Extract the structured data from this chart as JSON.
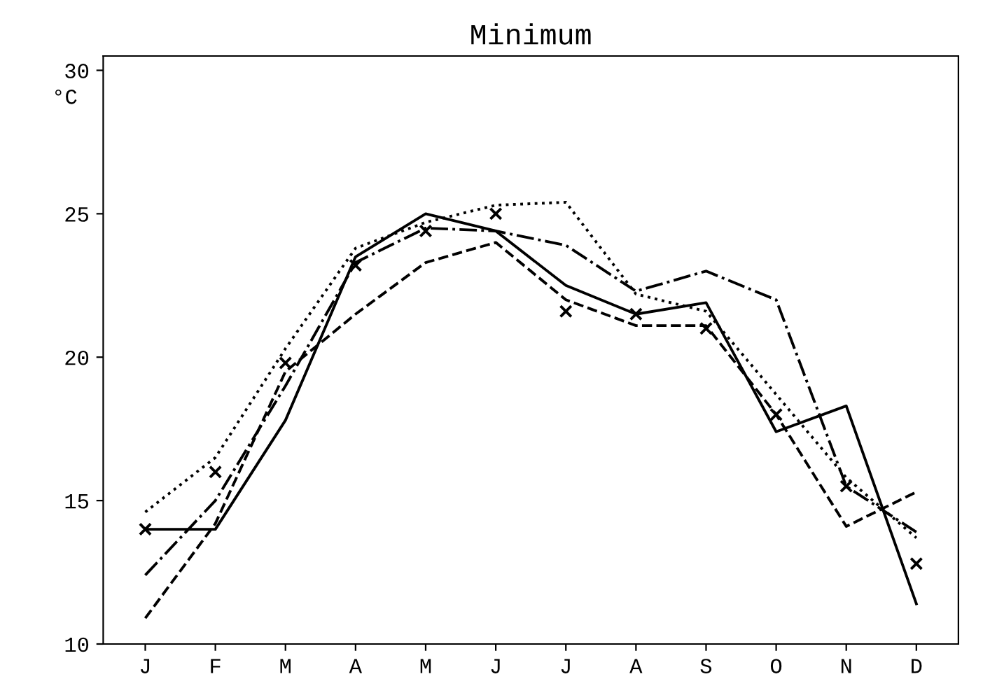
{
  "chart_data": {
    "type": "line",
    "title": "Minimum",
    "ylabel": "°C",
    "categories": [
      "J",
      "F",
      "M",
      "A",
      "M",
      "J",
      "J",
      "A",
      "S",
      "O",
      "N",
      "D"
    ],
    "ylim": [
      10,
      30.5
    ],
    "yticks": [
      10,
      15,
      20,
      25,
      30
    ],
    "grid": false,
    "legend": false,
    "series": [
      {
        "color": "#000000",
        "line_style": "solid",
        "marker": "none",
        "values": [
          14.0,
          14.0,
          17.8,
          23.5,
          25.0,
          24.4,
          22.5,
          21.5,
          21.9,
          17.4,
          18.3,
          11.4
        ]
      },
      {
        "color": "#000000",
        "line_style": "dashed",
        "marker": "none",
        "values": [
          10.9,
          14.2,
          19.5,
          21.5,
          23.3,
          24.0,
          22.0,
          21.1,
          21.1,
          18.0,
          14.1,
          15.3
        ]
      },
      {
        "color": "#000000",
        "line_style": "dashdot",
        "marker": "none",
        "values": [
          12.4,
          15.0,
          19.0,
          23.3,
          24.5,
          24.4,
          23.9,
          22.3,
          23.0,
          22.0,
          15.5,
          13.9
        ]
      },
      {
        "color": "#000000",
        "line_style": "dotted",
        "marker": "none",
        "values": [
          14.6,
          16.5,
          20.3,
          23.8,
          24.7,
          25.3,
          25.4,
          22.2,
          21.6,
          18.7,
          15.8,
          13.7
        ]
      },
      {
        "type": "scatter",
        "color": "#000000",
        "marker": "cross",
        "values": [
          14.0,
          16.0,
          19.8,
          23.2,
          24.4,
          25.0,
          21.6,
          21.5,
          21.0,
          18.0,
          15.5,
          12.8
        ]
      }
    ]
  }
}
